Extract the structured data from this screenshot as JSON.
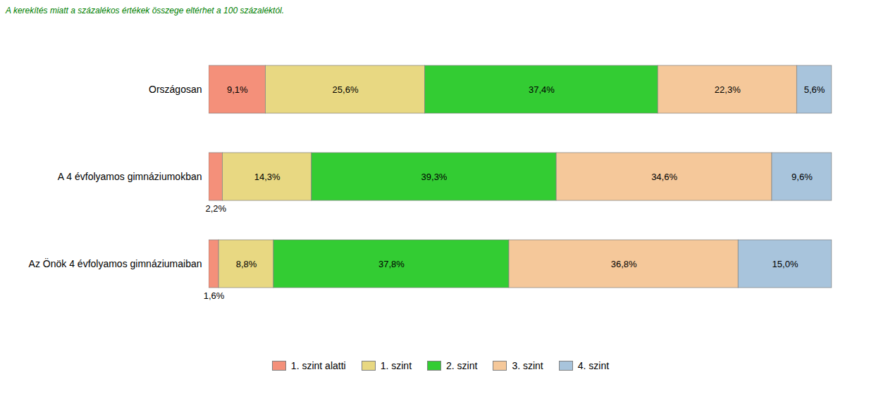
{
  "chart_data": {
    "type": "bar",
    "orientation": "horizontal",
    "stacked": true,
    "data_labels": true,
    "tick_labels": "y",
    "grid": false,
    "legend": "bottom",
    "annotations": [
      {
        "text": "A kerekítés miatt a százalékos értékek összege eltérhet a 100 százaléktól.",
        "color": "#008000"
      }
    ],
    "categories": [
      "Országosan",
      "A 4 évfolyamos gimnáziumokban",
      "Az Önök 4 évfolyamos gimnáziumaiban"
    ],
    "xlim": [
      0,
      105
    ],
    "series": [
      {
        "name": "1. szint alatti",
        "color": "#F4907A",
        "values": [
          9.1,
          2.2,
          1.6
        ],
        "value_labels": [
          "9,1%",
          "2,2%",
          "1,6%"
        ]
      },
      {
        "name": "1. szint",
        "color": "#E8D882",
        "values": [
          25.6,
          14.3,
          8.8
        ],
        "value_labels": [
          "25,6%",
          "14,3%",
          "8,8%"
        ]
      },
      {
        "name": "2. szint",
        "color": "#33CC33",
        "values": [
          37.4,
          39.3,
          37.8
        ],
        "value_labels": [
          "37,4%",
          "39,3%",
          "37,8%"
        ]
      },
      {
        "name": "3. szint",
        "color": "#F5C89A",
        "values": [
          22.3,
          34.6,
          36.8
        ],
        "value_labels": [
          "22,3%",
          "34,6%",
          "36,8%"
        ]
      },
      {
        "name": "4. szint",
        "color": "#A8C4DC",
        "values": [
          5.6,
          9.6,
          15.0
        ],
        "value_labels": [
          "5,6%",
          "9,6%",
          "15,0%"
        ]
      }
    ]
  }
}
